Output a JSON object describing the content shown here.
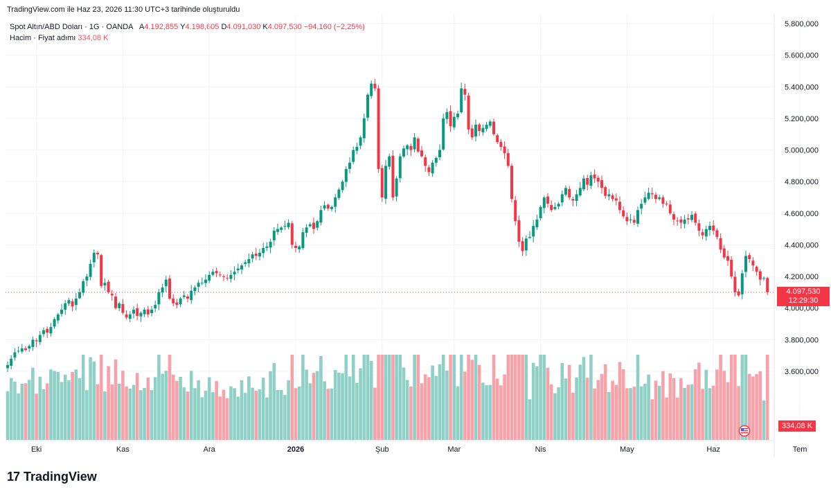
{
  "header_note": "TradingView.com ile Haz 23, 2026 11:30 UTC+3 tarihinde oluşturuldu",
  "legend": {
    "symbol": "Spot Altın/ABD Doları · 1G · OANDA",
    "open_label": "A",
    "open": "4.192,855",
    "high_label": "Y",
    "high": "4.198,605",
    "low_label": "D",
    "low": "4.091,030",
    "close_label": "K",
    "close": "4.097,530",
    "change": "−94,160 (−2,25%)",
    "volume_label": "Hacim · Fiyat adımı",
    "volume": "334,08 K"
  },
  "last_price_badge": {
    "price": "4.097,530",
    "countdown": "12:29:30"
  },
  "volume_badge": "334,08 K",
  "brand": "TradingView",
  "colors": {
    "up": "#089981",
    "down": "#f23645",
    "up_vol": "#8fd0c6",
    "down_vol": "#f7a1a8",
    "grid": "#f0f3fa"
  },
  "chart_data": {
    "type": "candlestick",
    "y_axis": {
      "ticks": [
        "5.800,000",
        "5.600,000",
        "5.400,000",
        "5.200,000",
        "5.000,000",
        "4.800,000",
        "4.600,000",
        "4.400,000",
        "4.200,000",
        "4.000,000",
        "3.800,000",
        "3.600,000"
      ],
      "tick_values": [
        5800,
        5600,
        5400,
        5200,
        5000,
        4800,
        4600,
        4400,
        4200,
        4000,
        3800,
        3600
      ]
    },
    "x_axis": {
      "labels": [
        "Eki",
        "Kas",
        "Ara",
        "2026",
        "Şub",
        "Mar",
        "Nis",
        "May",
        "Haz",
        "Tem"
      ],
      "label_index": [
        8,
        32,
        56,
        80,
        104,
        124,
        148,
        172,
        196,
        220
      ]
    },
    "ohlc_close": [
      3640,
      3680,
      3720,
      3730,
      3745,
      3735,
      3760,
      3800,
      3790,
      3830,
      3860,
      3845,
      3880,
      3930,
      3960,
      3990,
      4030,
      4050,
      4010,
      4060,
      4100,
      4170,
      4200,
      4280,
      4350,
      4340,
      4140,
      4160,
      4100,
      4080,
      4000,
      4030,
      3970,
      3940,
      3960,
      3990,
      3950,
      3970,
      3990,
      3960,
      3990,
      4020,
      4100,
      4130,
      4180,
      4060,
      4030,
      4020,
      4060,
      4080,
      4060,
      4110,
      4130,
      4160,
      4160,
      4180,
      4210,
      4230,
      4220,
      4210,
      4200,
      4190,
      4210,
      4230,
      4250,
      4270,
      4290,
      4310,
      4340,
      4330,
      4350,
      4380,
      4390,
      4420,
      4490,
      4500,
      4510,
      4520,
      4540,
      4400,
      4380,
      4390,
      4480,
      4510,
      4530,
      4500,
      4550,
      4620,
      4650,
      4630,
      4640,
      4700,
      4750,
      4800,
      4880,
      4920,
      5000,
      5020,
      5080,
      5200,
      5350,
      5420,
      5390,
      4880,
      4700,
      4900,
      4960,
      4700,
      4820,
      4960,
      5010,
      5030,
      5000,
      5080,
      4990,
      4960,
      4900,
      4860,
      4920,
      4950,
      5000,
      5200,
      5240,
      5150,
      5210,
      5230,
      5390,
      5350,
      5130,
      5080,
      5160,
      5120,
      5140,
      5160,
      5180,
      5100,
      5050,
      5020,
      4980,
      4900,
      4690,
      4550,
      4420,
      4360,
      4440,
      4450,
      4520,
      4560,
      4640,
      4700,
      4660,
      4620,
      4640,
      4660,
      4720,
      4760,
      4700,
      4680,
      4720,
      4760,
      4820,
      4780,
      4840,
      4820,
      4800,
      4760,
      4710,
      4720,
      4690,
      4680,
      4620,
      4580,
      4550,
      4560,
      4540,
      4620,
      4660,
      4700,
      4730,
      4720,
      4690,
      4700,
      4660,
      4660,
      4600,
      4560,
      4550,
      4540,
      4560,
      4560,
      4590,
      4540,
      4490,
      4460,
      4500,
      4520,
      4490,
      4450,
      4370,
      4320,
      4300,
      4200,
      4100,
      4080,
      4220,
      4330,
      4310,
      4270,
      4230,
      4180,
      4190,
      4100
    ],
    "volume_range": [
      0,
      1
    ]
  }
}
